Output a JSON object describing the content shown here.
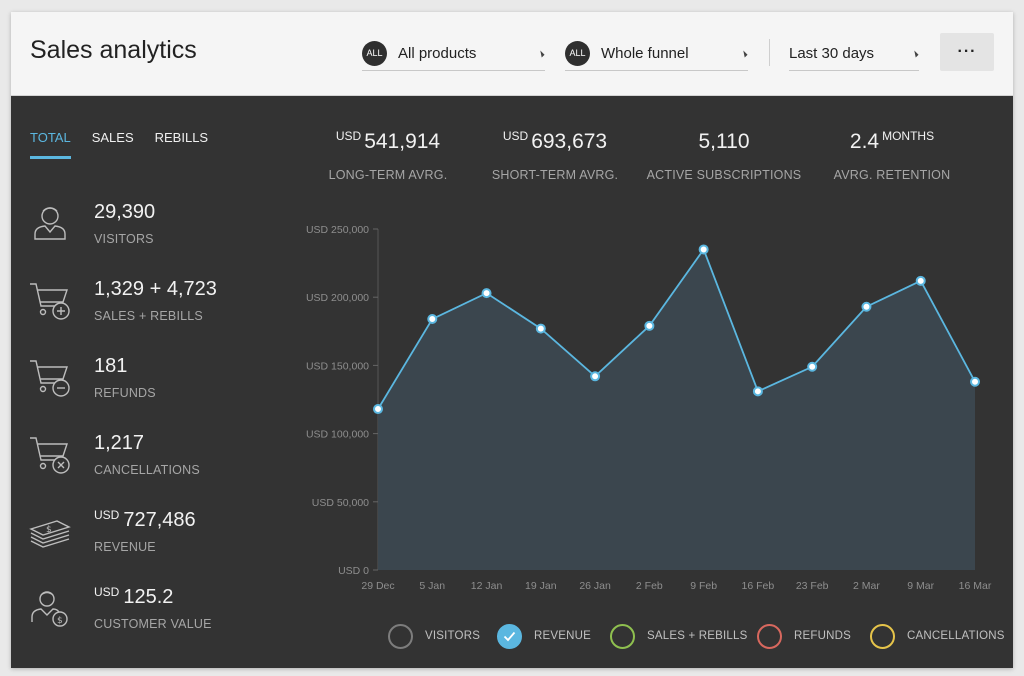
{
  "header": {
    "title": "Sales analytics",
    "product_filter": {
      "badge": "ALL",
      "value": "All products"
    },
    "funnel_filter": {
      "badge": "ALL",
      "value": "Whole funnel"
    },
    "period_filter": {
      "value": "Last 30 days"
    },
    "more_label": "···"
  },
  "tabs": [
    {
      "label": "TOTAL",
      "active": true
    },
    {
      "label": "SALES",
      "active": false
    },
    {
      "label": "REBILLS",
      "active": false
    }
  ],
  "metrics": [
    {
      "value": "29,390",
      "label": "VISITORS",
      "icon": "visitor-icon"
    },
    {
      "value": "1,329 + 4,723",
      "label": "SALES + REBILLS",
      "icon": "cart-plus-icon"
    },
    {
      "value": "181",
      "label": "REFUNDS",
      "icon": "cart-minus-icon"
    },
    {
      "value": "1,217",
      "label": "CANCELLATIONS",
      "icon": "cart-cancel-icon"
    },
    {
      "currency": "USD",
      "value": "727,486",
      "label": "REVENUE",
      "icon": "money-stack-icon"
    },
    {
      "currency": "USD",
      "value": "125.2",
      "label": "CUSTOMER VALUE",
      "icon": "customer-value-icon"
    }
  ],
  "kpis": [
    {
      "currency": "USD",
      "value": "541,914",
      "label": "LONG-TERM AVRG."
    },
    {
      "currency": "USD",
      "value": "693,673",
      "label": "SHORT-TERM AVRG."
    },
    {
      "value": "5,110",
      "label": "ACTIVE SUBSCRIPTIONS"
    },
    {
      "value": "2.4",
      "unit": "MONTHS",
      "label": "AVRG. RETENTION"
    }
  ],
  "chart_data": {
    "type": "area",
    "categories": [
      "29 Dec",
      "5 Jan",
      "12 Jan",
      "19 Jan",
      "26 Jan",
      "2 Feb",
      "9 Feb",
      "16 Feb",
      "23 Feb",
      "2 Mar",
      "9 Mar",
      "16 Mar"
    ],
    "series": [
      {
        "name": "REVENUE",
        "values": [
          118000,
          184000,
          203000,
          177000,
          142000,
          179000,
          235000,
          131000,
          149000,
          193000,
          212000,
          138000
        ]
      }
    ],
    "ylim": [
      0,
      250000
    ],
    "yticks": [
      0,
      50000,
      100000,
      150000,
      200000,
      250000
    ],
    "ytick_labels": [
      "USD 0",
      "USD 50,000",
      "USD 100,000",
      "USD 150,000",
      "USD 200,000",
      "USD 250,000"
    ],
    "grid": false,
    "legend_position": "bottom"
  },
  "legend": [
    {
      "label": "VISITORS",
      "color": "#7d7d7d",
      "checked": false
    },
    {
      "label": "REVENUE",
      "color": "#5bb7e0",
      "checked": true
    },
    {
      "label": "SALES + REBILLS",
      "color": "#8fc04f",
      "checked": false
    },
    {
      "label": "REFUNDS",
      "color": "#d8685e",
      "checked": false
    },
    {
      "label": "CANCELLATIONS",
      "color": "#e6c44a",
      "checked": false
    }
  ],
  "colors": {
    "accent": "#5bb7e0",
    "panel": "#333333",
    "area_fill": "#3c4850"
  }
}
